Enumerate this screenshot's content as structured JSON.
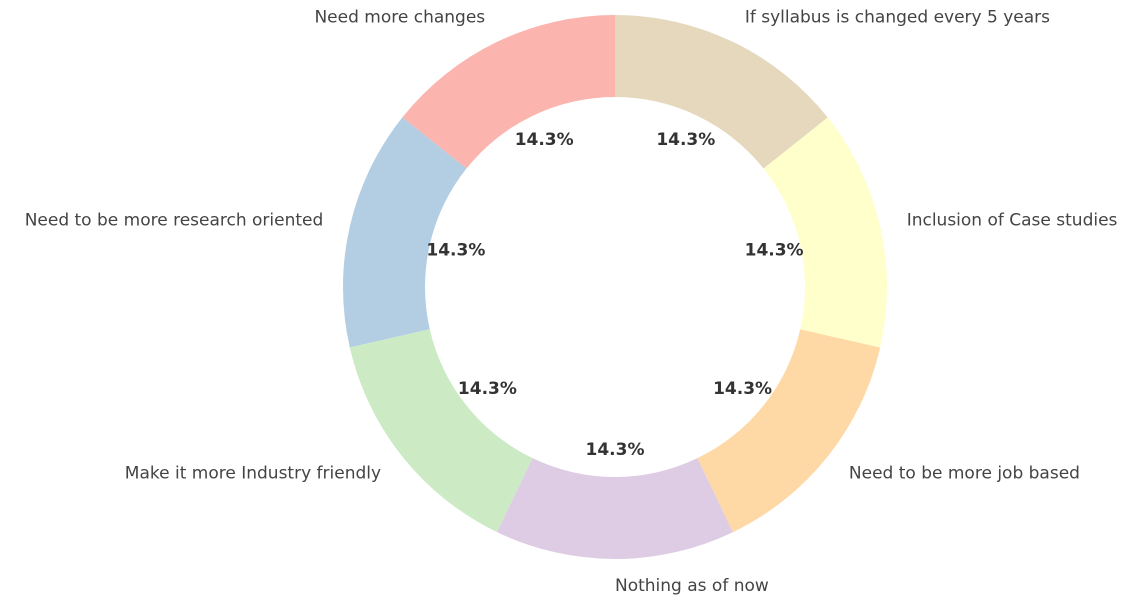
{
  "chart_data": {
    "type": "donut",
    "categories": [
      "Need more changes",
      "Need to be more research oriented",
      "Make it more Industry friendly",
      "Nothing as of now",
      "Need to be more job based",
      "Inclusion of Case studies",
      "If syllabus is changed every 5 years"
    ],
    "values": [
      14.3,
      14.3,
      14.3,
      14.3,
      14.3,
      14.3,
      14.3
    ],
    "value_labels": [
      "14.3%",
      "14.3%",
      "14.3%",
      "14.3%",
      "14.3%",
      "14.3%",
      "14.3%"
    ],
    "colors": [
      "#fbb4ae",
      "#b3cde3",
      "#ccebc5",
      "#decbe4",
      "#fed9a6",
      "#ffffcc",
      "#e5d8bd"
    ],
    "start_angle": 90,
    "counterclockwise": true
  }
}
